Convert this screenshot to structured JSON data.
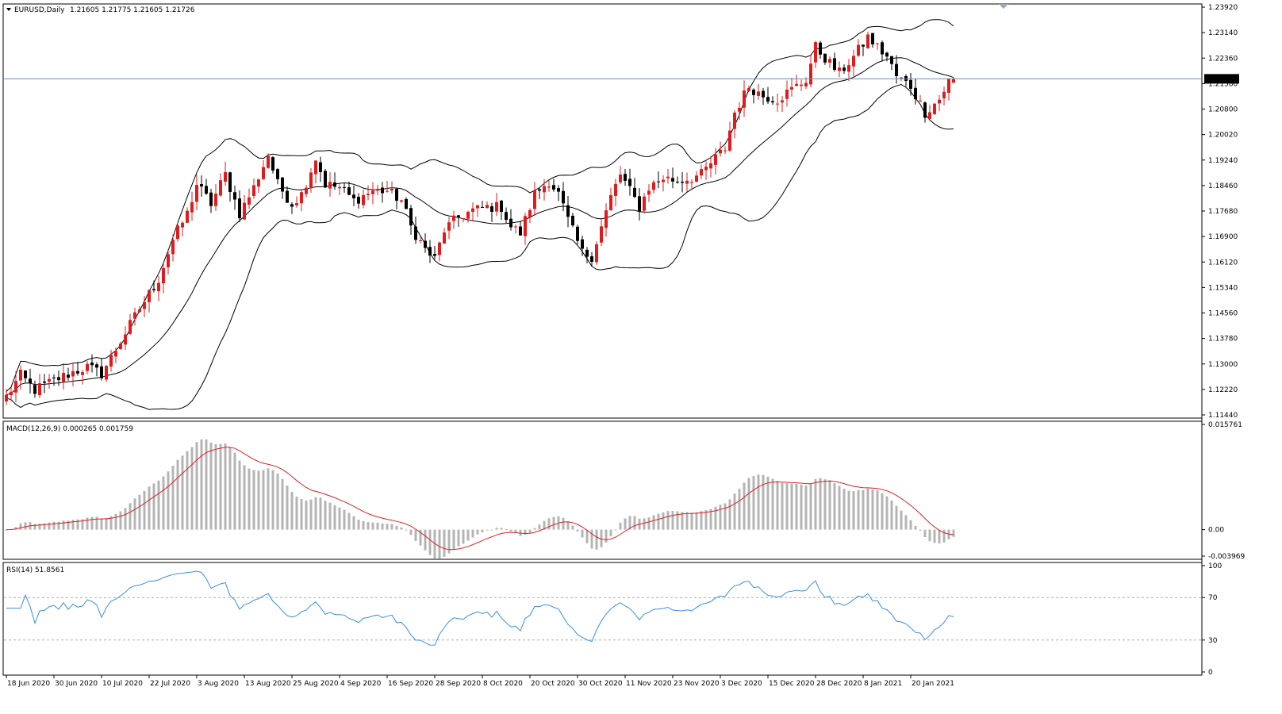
{
  "chart_header": {
    "symbol": "EURUSD,Daily",
    "ohlc": "1.21605 1.21775 1.21605 1.21726"
  },
  "colors": {
    "bull_candle": "#e11b1b",
    "bear_candle": "#000000",
    "bollinger": "#000000",
    "price_line": "#6f8db5",
    "macd_hist": "#b4b4b4",
    "macd_signal": "#e02020",
    "rsi_line": "#3a8ee0",
    "level_line": "#aaaaaa",
    "price_badge_bg": "#000000",
    "price_badge_fg": "#ffffff"
  },
  "price_axis": {
    "ticks": [
      "1.23920",
      "1.23140",
      "1.22360",
      "1.21580",
      "1.20800",
      "1.20020",
      "1.19240",
      "1.18460",
      "1.17680",
      "1.16900",
      "1.16120",
      "1.15340",
      "1.14560",
      "1.13780",
      "1.13000",
      "1.12220",
      "1.11440"
    ],
    "current_price": "1.21726"
  },
  "time_axis": {
    "labels": [
      "18 Jun 2020",
      "30 Jun 2020",
      "10 Jul 2020",
      "22 Jul 2020",
      "3 Aug 2020",
      "13 Aug 2020",
      "25 Aug 2020",
      "4 Sep 2020",
      "16 Sep 2020",
      "28 Sep 2020",
      "8 Oct 2020",
      "20 Oct 2020",
      "30 Oct 2020",
      "11 Nov 2020",
      "23 Nov 2020",
      "3 Dec 2020",
      "15 Dec 2020",
      "28 Dec 2020",
      "8 Jan 2021",
      "20 Jan 2021"
    ]
  },
  "macd": {
    "label": "MACD(12,26,9) 0.000265 0.001759",
    "ticks": [
      "0.015761",
      "0.00",
      "-0.003969"
    ]
  },
  "rsi": {
    "label": "RSI(14) 51.8561",
    "ticks": [
      "100",
      "70",
      "30",
      "0"
    ],
    "levels": [
      70,
      30
    ]
  },
  "chart_data": {
    "type": "candlestick",
    "symbol": "EURUSD",
    "timeframe": "Daily",
    "ylim": [
      1.1144,
      1.2392
    ],
    "close_path": [
      [
        0,
        1.12
      ],
      [
        3,
        1.1265
      ],
      [
        6,
        1.122
      ],
      [
        10,
        1.125
      ],
      [
        14,
        1.1275
      ],
      [
        17,
        1.129
      ],
      [
        20,
        1.127
      ],
      [
        24,
        1.137
      ],
      [
        28,
        1.147
      ],
      [
        32,
        1.156
      ],
      [
        35,
        1.168
      ],
      [
        38,
        1.176
      ],
      [
        40,
        1.185
      ],
      [
        43,
        1.179
      ],
      [
        46,
        1.188
      ],
      [
        49,
        1.176
      ],
      [
        52,
        1.184
      ],
      [
        55,
        1.194
      ],
      [
        57,
        1.185
      ],
      [
        60,
        1.179
      ],
      [
        62,
        1.182
      ],
      [
        65,
        1.193
      ],
      [
        67,
        1.185
      ],
      [
        70,
        1.184
      ],
      [
        73,
        1.18
      ],
      [
        77,
        1.183
      ],
      [
        80,
        1.183
      ],
      [
        83,
        1.18
      ],
      [
        85,
        1.172
      ],
      [
        88,
        1.165
      ],
      [
        90,
        1.162
      ],
      [
        92,
        1.171
      ],
      [
        95,
        1.175
      ],
      [
        98,
        1.177
      ],
      [
        101,
        1.178
      ],
      [
        104,
        1.178
      ],
      [
        106,
        1.172
      ],
      [
        108,
        1.17
      ],
      [
        111,
        1.182
      ],
      [
        114,
        1.186
      ],
      [
        116,
        1.182
      ],
      [
        118,
        1.174
      ],
      [
        121,
        1.164
      ],
      [
        123,
        1.163
      ],
      [
        125,
        1.172
      ],
      [
        127,
        1.181
      ],
      [
        129,
        1.188
      ],
      [
        131,
        1.183
      ],
      [
        133,
        1.178
      ],
      [
        135,
        1.184
      ],
      [
        138,
        1.187
      ],
      [
        141,
        1.186
      ],
      [
        144,
        1.187
      ],
      [
        146,
        1.188
      ],
      [
        149,
        1.193
      ],
      [
        151,
        1.196
      ],
      [
        153,
        1.207
      ],
      [
        156,
        1.215
      ],
      [
        159,
        1.212
      ],
      [
        162,
        1.211
      ],
      [
        165,
        1.214
      ],
      [
        168,
        1.217
      ],
      [
        170,
        1.227
      ],
      [
        173,
        1.222
      ],
      [
        175,
        1.219
      ],
      [
        178,
        1.224
      ],
      [
        181,
        1.23
      ],
      [
        183,
        1.227
      ],
      [
        185,
        1.224
      ],
      [
        187,
        1.218
      ],
      [
        190,
        1.215
      ],
      [
        193,
        1.207
      ],
      [
        196,
        1.211
      ],
      [
        198,
        1.2165
      ],
      [
        199,
        1.21726
      ]
    ],
    "bollinger_bands": {
      "period": 20,
      "deviations": 2
    },
    "macd": {
      "fast": 12,
      "slow": 26,
      "signal": 9,
      "main": 0.000265,
      "signal_value": 0.001759,
      "ylim": [
        -0.003969,
        0.015761
      ]
    },
    "rsi": {
      "period": 14,
      "value": 51.8561,
      "ylim": [
        0,
        100
      ],
      "levels": [
        70,
        30
      ]
    }
  }
}
